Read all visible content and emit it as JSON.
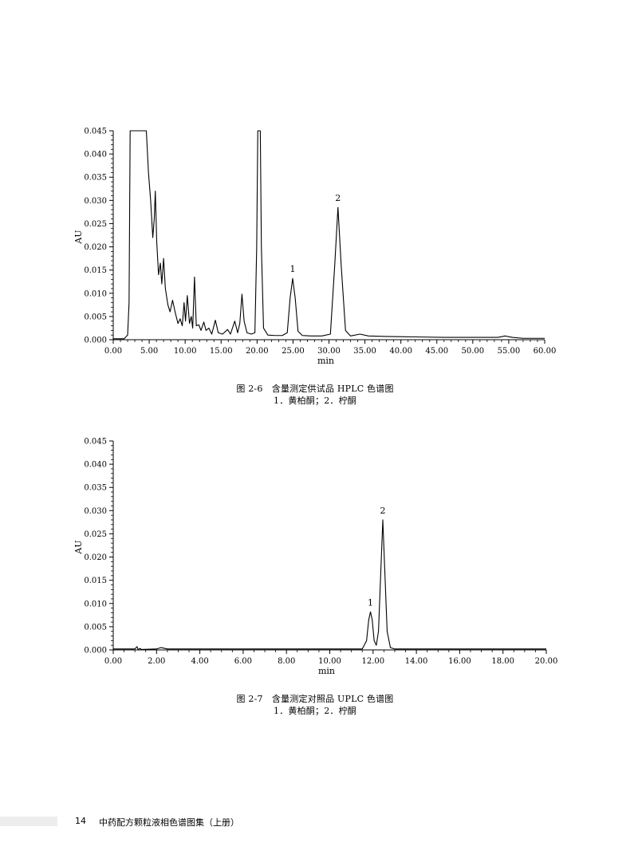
{
  "charts": [
    {
      "figure_caption": "图 2-6　含量测定供试品 HPLC 色谱图",
      "peak_caption": "1．黄柏酮；2．柠酮",
      "ylabel": "AU",
      "xlabel": "min"
    },
    {
      "figure_caption": "图 2-7　含量测定对照品 UPLC 色谱图",
      "peak_caption": "1．黄柏酮；2．柠酮",
      "ylabel": "AU",
      "xlabel": "min"
    }
  ],
  "chart_data": [
    {
      "type": "line",
      "ylabel": "AU",
      "xlabel": "min",
      "xlim": [
        0,
        60
      ],
      "ylim": [
        0,
        0.045
      ],
      "x_ticks": [
        "0.00",
        "5.00",
        "10.00",
        "15.00",
        "20.00",
        "25.00",
        "30.00",
        "35.00",
        "40.00",
        "45.00",
        "50.00",
        "55.00",
        "60.00"
      ],
      "y_ticks": [
        "0.000",
        "0.005",
        "0.010",
        "0.015",
        "0.020",
        "0.025",
        "0.030",
        "0.035",
        "0.040",
        "0.045"
      ],
      "grid": false,
      "series": [
        {
          "points": [
            [
              0,
              0.0002
            ],
            [
              1.5,
              0.0002
            ],
            [
              2.0,
              0.001
            ],
            [
              2.2,
              0.008
            ],
            [
              2.35,
              0.045
            ],
            [
              2.8,
              0.045
            ],
            [
              3.5,
              0.045
            ],
            [
              4.6,
              0.045
            ],
            [
              4.9,
              0.036
            ],
            [
              5.2,
              0.03
            ],
            [
              5.5,
              0.022
            ],
            [
              5.7,
              0.026
            ],
            [
              5.85,
              0.032
            ],
            [
              6.05,
              0.021
            ],
            [
              6.3,
              0.014
            ],
            [
              6.55,
              0.0165
            ],
            [
              6.75,
              0.012
            ],
            [
              7.0,
              0.0175
            ],
            [
              7.25,
              0.011
            ],
            [
              7.6,
              0.0075
            ],
            [
              7.9,
              0.006
            ],
            [
              8.25,
              0.0085
            ],
            [
              8.6,
              0.006
            ],
            [
              9.0,
              0.0035
            ],
            [
              9.3,
              0.0045
            ],
            [
              9.6,
              0.003
            ],
            [
              9.85,
              0.008
            ],
            [
              10.05,
              0.004
            ],
            [
              10.3,
              0.0095
            ],
            [
              10.6,
              0.0035
            ],
            [
              10.85,
              0.005
            ],
            [
              11.05,
              0.0025
            ],
            [
              11.3,
              0.0135
            ],
            [
              11.55,
              0.003
            ],
            [
              11.9,
              0.0032
            ],
            [
              12.2,
              0.002
            ],
            [
              12.6,
              0.0038
            ],
            [
              12.9,
              0.002
            ],
            [
              13.3,
              0.0025
            ],
            [
              13.7,
              0.0012
            ],
            [
              14.2,
              0.0042
            ],
            [
              14.6,
              0.0015
            ],
            [
              15.2,
              0.0012
            ],
            [
              15.9,
              0.0022
            ],
            [
              16.3,
              0.0012
            ],
            [
              16.9,
              0.004
            ],
            [
              17.3,
              0.0015
            ],
            [
              17.6,
              0.0035
            ],
            [
              17.9,
              0.0098
            ],
            [
              18.2,
              0.004
            ],
            [
              18.6,
              0.0015
            ],
            [
              19.2,
              0.0012
            ],
            [
              19.7,
              0.0015
            ],
            [
              19.95,
              0.02
            ],
            [
              20.1,
              0.045
            ],
            [
              20.45,
              0.045
            ],
            [
              20.6,
              0.02
            ],
            [
              20.9,
              0.0025
            ],
            [
              21.5,
              0.001
            ],
            [
              22.5,
              0.0009
            ],
            [
              23.5,
              0.0009
            ],
            [
              24.2,
              0.0015
            ],
            [
              24.6,
              0.009
            ],
            [
              24.95,
              0.0132
            ],
            [
              25.3,
              0.009
            ],
            [
              25.7,
              0.0018
            ],
            [
              26.3,
              0.0009
            ],
            [
              27.5,
              0.0008
            ],
            [
              29.0,
              0.0008
            ],
            [
              30.2,
              0.0012
            ],
            [
              30.8,
              0.016
            ],
            [
              31.25,
              0.0285
            ],
            [
              31.7,
              0.016
            ],
            [
              32.3,
              0.002
            ],
            [
              33.0,
              0.0008
            ],
            [
              34.3,
              0.0012
            ],
            [
              35.5,
              0.0008
            ],
            [
              38.0,
              0.0007
            ],
            [
              42.0,
              0.0006
            ],
            [
              46.0,
              0.0005
            ],
            [
              50.0,
              0.0005
            ],
            [
              53.5,
              0.0005
            ],
            [
              54.5,
              0.0008
            ],
            [
              55.5,
              0.0005
            ],
            [
              57.0,
              0.0003
            ],
            [
              60.0,
              0.0003
            ]
          ]
        }
      ],
      "annotations": [
        {
          "text": "1",
          "x": 24.95,
          "y": 0.0132
        },
        {
          "text": "2",
          "x": 31.25,
          "y": 0.0285
        }
      ]
    },
    {
      "type": "line",
      "ylabel": "AU",
      "xlabel": "min",
      "xlim": [
        0,
        20
      ],
      "ylim": [
        0,
        0.045
      ],
      "x_ticks": [
        "0.00",
        "2.00",
        "4.00",
        "6.00",
        "8.00",
        "10.00",
        "12.00",
        "14.00",
        "16.00",
        "18.00",
        "20.00"
      ],
      "y_ticks": [
        "0.000",
        "0.005",
        "0.010",
        "0.015",
        "0.020",
        "0.025",
        "0.030",
        "0.035",
        "0.040",
        "0.045"
      ],
      "grid": false,
      "series": [
        {
          "points": [
            [
              0,
              0.0002
            ],
            [
              1.0,
              0.0002
            ],
            [
              1.1,
              0.0007
            ],
            [
              1.15,
              0.0001
            ],
            [
              1.25,
              0.0003
            ],
            [
              1.3,
              0.0001
            ],
            [
              2.0,
              0.0002
            ],
            [
              2.2,
              0.0005
            ],
            [
              2.5,
              0.0002
            ],
            [
              11.5,
              0.0002
            ],
            [
              11.7,
              0.002
            ],
            [
              11.8,
              0.0065
            ],
            [
              11.88,
              0.0082
            ],
            [
              11.96,
              0.0065
            ],
            [
              12.05,
              0.002
            ],
            [
              12.15,
              0.001
            ],
            [
              12.25,
              0.004
            ],
            [
              12.35,
              0.016
            ],
            [
              12.45,
              0.028
            ],
            [
              12.55,
              0.016
            ],
            [
              12.65,
              0.004
            ],
            [
              12.8,
              0.0005
            ],
            [
              13.0,
              0.0002
            ],
            [
              20.0,
              0.0002
            ]
          ]
        }
      ],
      "annotations": [
        {
          "text": "1",
          "x": 11.88,
          "y": 0.0082
        },
        {
          "text": "2",
          "x": 12.45,
          "y": 0.028
        }
      ]
    }
  ],
  "footer": {
    "page_number": "14",
    "book_title": "中药配方颗粒液相色谱图集（上册）"
  }
}
